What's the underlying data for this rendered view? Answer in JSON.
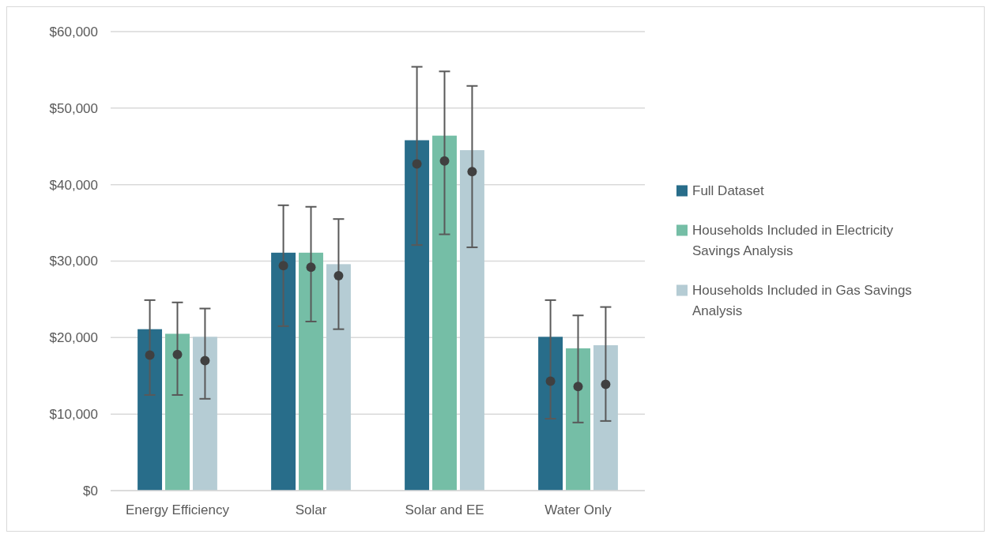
{
  "chart_data": {
    "type": "bar",
    "categories": [
      "Energy Efficiency",
      "Solar",
      "Solar and EE",
      "Water Only"
    ],
    "series": [
      {
        "name": "Full Dataset",
        "color": "#286d8a",
        "values": [
          21100,
          31100,
          45800,
          20100
        ]
      },
      {
        "name": "Households Included in Electricity Savings Analysis",
        "color": "#75bea6",
        "values": [
          20500,
          31100,
          46400,
          18600
        ]
      },
      {
        "name": "Households Included in Gas Savings Analysis",
        "color": "#b5ccd4",
        "values": [
          20100,
          29600,
          44500,
          19000
        ]
      },
      {
        "type": "scatter",
        "color": "#404040",
        "x": [
          "Energy Efficiency",
          "Solar",
          "Solar and EE",
          "Water Only"
        ],
        "values": [
          17700,
          29400,
          42700,
          14300
        ],
        "errors": [
          [
            12500,
            24900
          ],
          [
            21500,
            37300
          ],
          [
            32100,
            55400
          ],
          [
            9400,
            24900
          ]
        ]
      },
      {
        "type": "scatter",
        "color": "#404040",
        "x": [
          "Energy Efficiency",
          "Solar",
          "Solar and EE",
          "Water Only"
        ],
        "values": [
          17800,
          29200,
          43100,
          13600
        ],
        "errors": [
          [
            12500,
            24600
          ],
          [
            22100,
            37100
          ],
          [
            33500,
            54800
          ],
          [
            8900,
            22900
          ]
        ]
      },
      {
        "type": "scatter",
        "color": "#404040",
        "x": [
          "Energy Efficiency",
          "Solar",
          "Solar and EE",
          "Water Only"
        ],
        "values": [
          17000,
          28100,
          41700,
          13900
        ],
        "errors": [
          [
            12000,
            23800
          ],
          [
            21100,
            35500
          ],
          [
            31800,
            52900
          ],
          [
            9100,
            24000
          ]
        ]
      }
    ],
    "ylim": [
      0,
      60000
    ],
    "yticks": [
      {
        "value": 0,
        "label": "$0"
      },
      {
        "value": 10000,
        "label": "$10,000"
      },
      {
        "value": 20000,
        "label": "$20,000"
      },
      {
        "value": 30000,
        "label": "$30,000"
      },
      {
        "value": 40000,
        "label": "$40,000"
      },
      {
        "value": 50000,
        "label": "$50,000"
      },
      {
        "value": 60000,
        "label": "$60,000"
      }
    ],
    "grid": "y",
    "legend": "right",
    "marker": "circle"
  }
}
